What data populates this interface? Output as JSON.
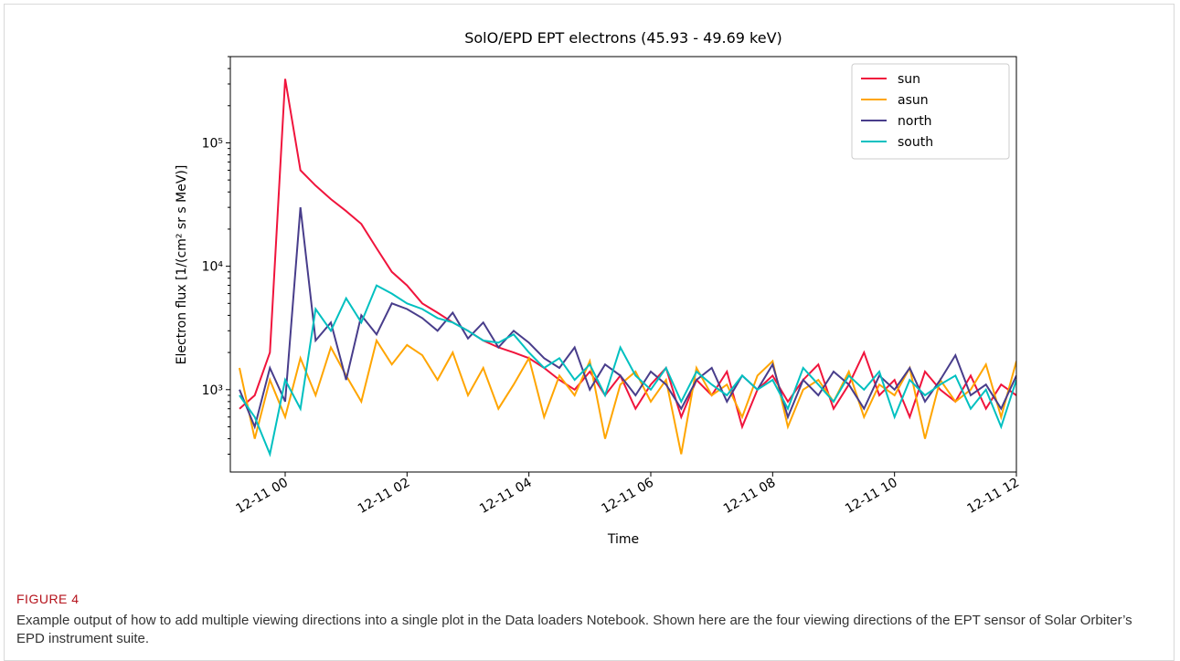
{
  "caption": {
    "label": "FIGURE 4",
    "text": "Example output of how to add multiple viewing directions into a single plot in the Data loaders Notebook. Shown here are the four viewing directions of the EPT sensor of Solar Orbiter’s EPD instrument suite."
  },
  "chart_data": {
    "type": "line",
    "title": "SolO/EPD EPT electrons (45.93 - 49.69 keV)",
    "xlabel": "Time",
    "ylabel": "Electron flux [1/(cm² sr s MeV)]",
    "ylog": true,
    "legend": "upper right",
    "xlim": [
      -0.9,
      12
    ],
    "ylim": [
      215,
      500000
    ],
    "xticks": [
      {
        "value": 0,
        "label": "12-11 00"
      },
      {
        "value": 2,
        "label": "12-11 02"
      },
      {
        "value": 4,
        "label": "12-11 04"
      },
      {
        "value": 6,
        "label": "12-11 06"
      },
      {
        "value": 8,
        "label": "12-11 08"
      },
      {
        "value": 10,
        "label": "12-11 10"
      },
      {
        "value": 12,
        "label": "12-11 12"
      }
    ],
    "yticks": [
      {
        "value": 1000,
        "label": "10³"
      },
      {
        "value": 10000,
        "label": "10⁴"
      },
      {
        "value": 100000,
        "label": "10⁵"
      }
    ],
    "x": [
      -0.75,
      -0.5,
      -0.25,
      0,
      0.25,
      0.5,
      0.75,
      1,
      1.25,
      1.5,
      1.75,
      2,
      2.25,
      2.5,
      2.75,
      3,
      3.25,
      3.5,
      3.75,
      4,
      4.25,
      4.5,
      4.75,
      5,
      5.25,
      5.5,
      5.75,
      6,
      6.25,
      6.5,
      6.75,
      7,
      7.25,
      7.5,
      7.75,
      8,
      8.25,
      8.5,
      8.75,
      9,
      9.25,
      9.5,
      9.75,
      10,
      10.25,
      10.5,
      10.75,
      11,
      11.25,
      11.5,
      11.75,
      12
    ],
    "series": [
      {
        "name": "sun",
        "color": "#f0143c",
        "values": [
          700,
          900,
          2000,
          330000,
          60000,
          45000,
          35000,
          28000,
          22000,
          14000,
          9000,
          7000,
          5000,
          4200,
          3500,
          3000,
          2500,
          2200,
          2000,
          1800,
          1500,
          1200,
          1000,
          1400,
          900,
          1300,
          700,
          1100,
          1500,
          600,
          1200,
          900,
          1400,
          500,
          1000,
          1300,
          800,
          1200,
          1600,
          700,
          1100,
          2000,
          900,
          1200,
          600,
          1400,
          1000,
          800,
          1300,
          700,
          1100,
          900
        ]
      },
      {
        "name": "asun",
        "color": "#ffa500",
        "values": [
          1500,
          400,
          1200,
          600,
          1800,
          900,
          2200,
          1300,
          800,
          2500,
          1600,
          2300,
          1900,
          1200,
          2000,
          900,
          1500,
          700,
          1100,
          1800,
          600,
          1300,
          900,
          1700,
          400,
          1100,
          1400,
          800,
          1200,
          300,
          1500,
          900,
          1100,
          600,
          1300,
          1700,
          500,
          1000,
          1200,
          800,
          1400,
          600,
          1100,
          900,
          1500,
          400,
          1200,
          800,
          1000,
          1600,
          600,
          1700
        ]
      },
      {
        "name": "north",
        "color": "#483d8b",
        "values": [
          1000,
          500,
          1500,
          800,
          30000,
          2500,
          3500,
          1200,
          4000,
          2800,
          5000,
          4500,
          3800,
          3000,
          4200,
          2600,
          3500,
          2200,
          3000,
          2400,
          1800,
          1500,
          2200,
          1000,
          1600,
          1300,
          900,
          1400,
          1100,
          700,
          1200,
          1500,
          800,
          1300,
          1000,
          1600,
          600,
          1200,
          900,
          1400,
          1100,
          700,
          1300,
          1000,
          1500,
          800,
          1200,
          1900,
          900,
          1100,
          700,
          1300
        ]
      },
      {
        "name": "south",
        "color": "#00c0c0",
        "values": [
          900,
          600,
          300,
          1200,
          700,
          4500,
          3000,
          5500,
          3500,
          7000,
          6000,
          5000,
          4500,
          3800,
          3500,
          3000,
          2500,
          2400,
          2800,
          2000,
          1500,
          1800,
          1200,
          1600,
          900,
          2200,
          1300,
          1000,
          1500,
          800,
          1400,
          1100,
          900,
          1300,
          1000,
          1200,
          700,
          1500,
          1100,
          800,
          1300,
          1000,
          1400,
          600,
          1200,
          900,
          1100,
          1300,
          700,
          1000,
          500,
          1200
        ]
      }
    ]
  }
}
